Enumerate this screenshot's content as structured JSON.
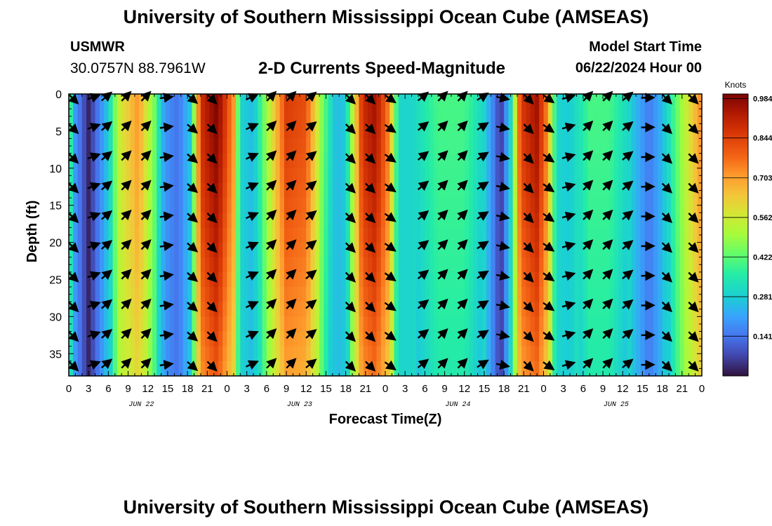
{
  "header": {
    "title": "University of Southern Mississippi Ocean Cube (AMSEAS)",
    "station": "USMWR",
    "coords": "30.0757N  88.7961W",
    "subtitle": "2-D Currents Speed-Magnitude",
    "start_label": "Model Start Time",
    "start_value": "06/22/2024 Hour 00"
  },
  "footer": {
    "title": "University of Southern Mississippi Ocean Cube (AMSEAS)"
  },
  "chart_data": {
    "type": "heatmap",
    "title": "2-D Currents Speed-Magnitude",
    "xlabel": "Forecast Time(Z)",
    "ylabel": "Depth (ft)",
    "xlim": [
      0,
      96
    ],
    "ylim": [
      0,
      38
    ],
    "y_inverted": true,
    "x_tick_labels": [
      "0",
      "3",
      "6",
      "9",
      "12",
      "15",
      "18",
      "21",
      "0",
      "3",
      "6",
      "9",
      "12",
      "15",
      "18",
      "21",
      "0",
      "3",
      "6",
      "9",
      "12",
      "15",
      "18",
      "21",
      "0",
      "3",
      "6",
      "9",
      "12",
      "15",
      "18",
      "21",
      "0"
    ],
    "x_tick_interval_hours": 3,
    "date_labels": [
      {
        "label": "JUN 22",
        "hour": 11
      },
      {
        "label": "JUN 23",
        "hour": 35
      },
      {
        "label": "JUN 24",
        "hour": 59
      },
      {
        "label": "JUN 25",
        "hour": 83
      }
    ],
    "y_ticks": [
      0,
      5,
      10,
      15,
      20,
      25,
      30,
      35
    ],
    "colorbar": {
      "unit_label": "Knots",
      "range": [
        0.0,
        1.0
      ],
      "tick_labels": [
        "0.984",
        "0.844",
        "0.703",
        "0.562",
        "0.422",
        "0.281",
        "0.141"
      ],
      "tick_values": [
        0.984,
        0.844,
        0.703,
        0.562,
        0.422,
        0.281,
        0.141
      ]
    },
    "speed_anchors": [
      {
        "hour": 0,
        "speed": 0.45
      },
      {
        "hour": 1,
        "speed": 0.2
      },
      {
        "hour": 3,
        "speed": 0.03
      },
      {
        "hour": 6,
        "speed": 0.28
      },
      {
        "hour": 7.5,
        "speed": 0.55
      },
      {
        "hour": 10.5,
        "speed": 0.72
      },
      {
        "hour": 13,
        "speed": 0.45
      },
      {
        "hour": 14.5,
        "speed": 0.2
      },
      {
        "hour": 16.5,
        "speed": 0.14
      },
      {
        "hour": 18.5,
        "speed": 0.28
      },
      {
        "hour": 20,
        "speed": 0.88
      },
      {
        "hour": 22.5,
        "speed": 1.0
      },
      {
        "hour": 25,
        "speed": 0.72
      },
      {
        "hour": 26,
        "speed": 0.3
      },
      {
        "hour": 28,
        "speed": 0.25
      },
      {
        "hour": 30,
        "speed": 0.5
      },
      {
        "hour": 33,
        "speed": 0.85
      },
      {
        "hour": 36,
        "speed": 0.82
      },
      {
        "hour": 38.5,
        "speed": 0.45
      },
      {
        "hour": 40.5,
        "speed": 0.25
      },
      {
        "hour": 42,
        "speed": 0.28
      },
      {
        "hour": 44.5,
        "speed": 0.88
      },
      {
        "hour": 46.5,
        "speed": 0.95
      },
      {
        "hour": 48.5,
        "speed": 0.75
      },
      {
        "hour": 50,
        "speed": 0.3
      },
      {
        "hour": 52,
        "speed": 0.3
      },
      {
        "hour": 56,
        "speed": 0.4
      },
      {
        "hour": 60,
        "speed": 0.4
      },
      {
        "hour": 63,
        "speed": 0.3
      },
      {
        "hour": 65.5,
        "speed": 0.05
      },
      {
        "hour": 67,
        "speed": 0.3
      },
      {
        "hour": 68.5,
        "speed": 0.85
      },
      {
        "hour": 71,
        "speed": 0.95
      },
      {
        "hour": 72.5,
        "speed": 0.75
      },
      {
        "hour": 74,
        "speed": 0.3
      },
      {
        "hour": 76,
        "speed": 0.28
      },
      {
        "hour": 79,
        "speed": 0.4
      },
      {
        "hour": 82,
        "speed": 0.4
      },
      {
        "hour": 85,
        "speed": 0.3
      },
      {
        "hour": 88,
        "speed": 0.15
      },
      {
        "hour": 90,
        "speed": 0.25
      },
      {
        "hour": 93,
        "speed": 0.5
      },
      {
        "hour": 96,
        "speed": 0.75
      }
    ],
    "direction_anchors": [
      {
        "hour": 0,
        "deg": 135
      },
      {
        "hour": 1,
        "deg": 135
      },
      {
        "hour": 3,
        "deg": 75
      },
      {
        "hour": 6,
        "deg": 45
      },
      {
        "hour": 9,
        "deg": 45
      },
      {
        "hour": 12,
        "deg": 45
      },
      {
        "hour": 15,
        "deg": 90
      },
      {
        "hour": 18,
        "deg": 130
      },
      {
        "hour": 21,
        "deg": 135
      },
      {
        "hour": 24,
        "deg": 135
      },
      {
        "hour": 25,
        "deg": 100
      },
      {
        "hour": 27,
        "deg": 70
      },
      {
        "hour": 30,
        "deg": 45
      },
      {
        "hour": 36,
        "deg": 45
      },
      {
        "hour": 40,
        "deg": 90
      },
      {
        "hour": 42,
        "deg": 135
      },
      {
        "hour": 48,
        "deg": 135
      },
      {
        "hour": 51,
        "deg": 80
      },
      {
        "hour": 54,
        "deg": 45
      },
      {
        "hour": 60,
        "deg": 45
      },
      {
        "hour": 63,
        "deg": 60
      },
      {
        "hour": 66,
        "deg": 110
      },
      {
        "hour": 69,
        "deg": 135
      },
      {
        "hour": 72,
        "deg": 135
      },
      {
        "hour": 75,
        "deg": 80
      },
      {
        "hour": 78,
        "deg": 45
      },
      {
        "hour": 84,
        "deg": 45
      },
      {
        "hour": 87,
        "deg": 80
      },
      {
        "hour": 90,
        "deg": 135
      },
      {
        "hour": 96,
        "deg": 135
      }
    ],
    "arrow_columns": [
      0.5,
      3.5,
      5.5,
      8.5,
      11.5,
      14.5,
      18.5,
      21.5,
      27.5,
      30.5,
      33.5,
      36.5,
      42.5,
      45.5,
      48.5,
      53.5,
      56.5,
      59.5,
      62.5,
      65.5,
      69.5,
      72.5,
      75.5,
      78.5,
      81.5,
      84.5,
      87.5,
      90.5,
      94.5
    ],
    "arrow_depths": [
      0,
      4,
      8,
      12,
      16,
      20,
      24,
      28,
      32,
      36
    ]
  }
}
